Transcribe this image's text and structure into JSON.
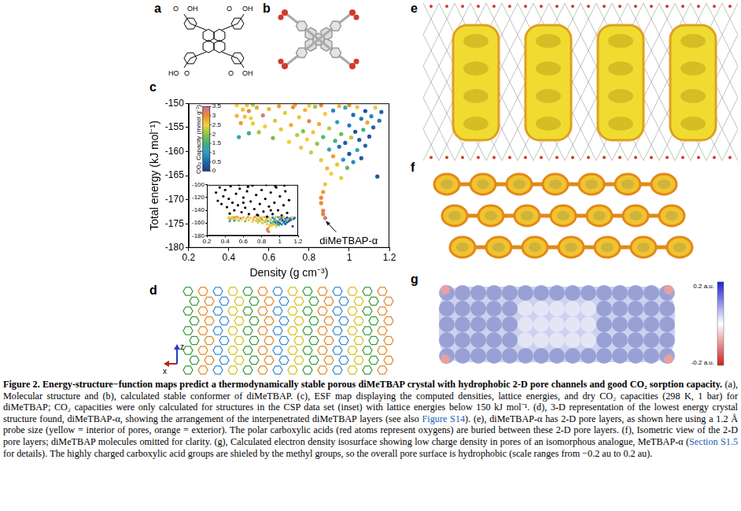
{
  "panels": [
    {
      "letter": "a",
      "atom_labels": [
        "O",
        "OH",
        "O",
        "OH",
        "HO",
        "O",
        "O",
        "OH"
      ]
    },
    {
      "letter": "b"
    },
    {
      "letter": "c"
    },
    {
      "letter": "d",
      "axis_labels": [
        "z",
        "x"
      ]
    },
    {
      "letter": "e"
    },
    {
      "letter": "f"
    },
    {
      "letter": "g",
      "scale_labels": [
        "0.2 a.u.",
        "-0.2 a.u."
      ]
    }
  ],
  "chart_data": {
    "type": "scatter",
    "x_label": "Density (g cm⁻³)",
    "y_label": "Total energy (kJ mol⁻¹)",
    "x": [
      0.47,
      0.49,
      0.44,
      0.46,
      0.44,
      0.52,
      0.5,
      0.48,
      0.5,
      0.52,
      0.54,
      0.55,
      0.57,
      0.58,
      0.6,
      0.62,
      0.63,
      0.65,
      0.66,
      0.68,
      0.7,
      0.71,
      0.72,
      0.74,
      0.75,
      0.76,
      0.77,
      0.78,
      0.79,
      0.8,
      0.81,
      0.82,
      0.83,
      0.84,
      0.85,
      0.86,
      0.87,
      0.88,
      0.89,
      0.9,
      0.9,
      0.91,
      0.92,
      0.92,
      0.93,
      0.94,
      0.94,
      0.95,
      0.96,
      0.96,
      0.97,
      0.98,
      0.98,
      0.99,
      1.0,
      1.0,
      1.01,
      1.02,
      1.02,
      1.03,
      1.04,
      1.04,
      1.05,
      1.06,
      1.06,
      1.07,
      1.08,
      1.08,
      1.09,
      1.1,
      1.11,
      1.12,
      1.13,
      1.14,
      1.15,
      1.16,
      0.73,
      0.8,
      0.86,
      0.95,
      1.0,
      0.88,
      0.87,
      0.86,
      0.86,
      0.87,
      0.87,
      0.88,
      0.45,
      0.51
    ],
    "values": [
      -151.3,
      -150.4,
      -152.6,
      -154.1,
      -150.4,
      -150.3,
      -156.2,
      -152.8,
      -151.6,
      -154.2,
      -150.9,
      -156.0,
      -152.5,
      -154.8,
      -151.2,
      -157.2,
      -153.6,
      -150.6,
      -155.4,
      -152.0,
      -158.0,
      -154.5,
      -150.8,
      -156.6,
      -152.9,
      -159.2,
      -155.8,
      -151.4,
      -157.5,
      -153.7,
      -160.2,
      -156.0,
      -150.7,
      -158.4,
      -154.3,
      -161.8,
      -157.0,
      -152.2,
      -163.5,
      -159.6,
      -155.2,
      -164.6,
      -161.0,
      -151.5,
      -157.8,
      -162.7,
      -153.9,
      -159.0,
      -165.5,
      -156.4,
      -161.7,
      -150.9,
      -158.2,
      -163.4,
      -154.6,
      -160.5,
      -157.1,
      -152.4,
      -162.2,
      -155.9,
      -159.7,
      -150.8,
      -157.6,
      -153.2,
      -161.4,
      -155.5,
      -151.6,
      -158.8,
      -154.0,
      -156.9,
      -152.7,
      -155.0,
      -150.9,
      -165.2,
      -153.6,
      -151.8,
      -150.3,
      -150.5,
      -150.4,
      -150.6,
      -150.4,
      -166.8,
      -168.4,
      -169.6,
      -170.7,
      -172.3,
      -173.0,
      -173.8,
      -157.0,
      -153.1
    ],
    "co2_capacity": [
      2.6,
      2.4,
      2.7,
      2.9,
      2.5,
      2.2,
      1.4,
      2.6,
      3.1,
      2.4,
      2.8,
      2.1,
      3.3,
      2.5,
      2.7,
      1.8,
      2.3,
      2.9,
      2.6,
      2.4,
      2.5,
      2.8,
      3.0,
      2.2,
      2.6,
      2.4,
      1.9,
      2.7,
      2.5,
      3.2,
      2.3,
      2.6,
      2.1,
      2.0,
      2.8,
      2.4,
      1.6,
      2.5,
      2.7,
      1.2,
      2.2,
      2.5,
      2.9,
      0.8,
      1.5,
      2.6,
      1.0,
      0.6,
      2.4,
      1.8,
      0.9,
      1.2,
      0.4,
      1.7,
      0.7,
      0.3,
      2.2,
      0.5,
      0.8,
      0.2,
      1.1,
      2.6,
      0.4,
      0.6,
      0.3,
      1.4,
      0.2,
      0.5,
      2.8,
      0.3,
      0.8,
      0.4,
      2.4,
      0.3,
      0.6,
      0.5,
      2.8,
      2.5,
      3.0,
      2.7,
      2.9,
      2.6,
      2.9,
      3.1,
      3.0,
      3.2,
      3.1,
      3.3,
      1.2,
      2.5
    ],
    "colorbar": {
      "label": "CO₂ Capacity (mmol g⁻¹)",
      "range": [
        0,
        3.5
      ],
      "ticks": [
        0,
        0.5,
        1,
        1.5,
        2,
        2.5,
        3,
        3.5
      ]
    },
    "annotation": "diMeTBAP-α",
    "xlim": [
      0.2,
      1.2
    ],
    "ylim": [
      -180,
      -150
    ],
    "xticks": [
      0.2,
      0.4,
      0.6,
      0.8,
      1,
      1.2
    ],
    "yticks": [
      -180,
      -175,
      -170,
      -165,
      -160,
      -155,
      -150
    ],
    "grid": false,
    "inset": {
      "type": "scatter",
      "color": "#000000",
      "x": [
        0.3,
        0.32,
        0.34,
        0.36,
        0.38,
        0.4,
        0.42,
        0.44,
        0.46,
        0.48,
        0.5,
        0.52,
        0.54,
        0.56,
        0.58,
        0.6,
        0.62,
        0.64,
        0.66,
        0.68,
        0.7,
        0.72,
        0.74,
        0.76,
        0.78,
        0.8,
        0.82,
        0.84,
        0.86,
        0.88,
        0.9,
        0.92,
        0.94,
        0.96,
        0.98,
        1.0,
        1.02,
        1.04,
        1.06,
        1.08,
        1.1,
        0.55,
        0.65,
        0.85,
        0.95,
        1.05,
        0.45,
        0.75,
        0.6,
        0.9
      ],
      "values": [
        -112,
        -125,
        -104,
        -130,
        -118,
        -108,
        -135,
        -122,
        -102,
        -128,
        -140,
        -114,
        -132,
        -106,
        -143,
        -120,
        -136,
        -110,
        -146,
        -126,
        -101,
        -138,
        -116,
        -148,
        -130,
        -108,
        -142,
        -122,
        -150,
        -134,
        -112,
        -146,
        -128,
        -104,
        -140,
        -118,
        -148,
        -132,
        -110,
        -144,
        -124,
        -100,
        -103,
        -100,
        -102,
        -101,
        -145,
        -147,
        -128,
        -140
      ],
      "xlim": [
        0.2,
        1.2
      ],
      "ylim": [
        -180,
        -100
      ],
      "xticks": [
        0.2,
        0.4,
        0.6,
        0.8,
        1,
        1.2
      ],
      "yticks": [
        -180,
        -160,
        -140,
        -120,
        -100
      ]
    }
  },
  "caption": [
    {
      "text": "Figure 2. Energy-structure−function maps predict a thermodynamically stable porous diMeTBAP crystal with hydrophobic 2-D pore channels and good CO₂ sorption capacity.",
      "style": "bold"
    },
    {
      "text": " (a), Molecular structure and (b), calculated stable conformer of diMeTBAP. (c), ESF map displaying the computed densities, lattice energies, and dry CO₂ capacities (298 K, 1 bar) for diMeTBAP; CO₂ capacities were only calculated for structures in the CSP data set (inset) with lattice energies below 150 kJ mol⁻¹. (d), 3-D representation of the lowest energy crystal structure found, diMeTBAP-α, showing the arrangement of the interpenetrated diMeTBAP layers (see also ",
      "style": "plain"
    },
    {
      "text": "Figure S14",
      "style": "link"
    },
    {
      "text": "). (e), diMeTBAP-α has 2-D pore layers, as shown here using a 1.2 Å probe size (yellow = interior of pores, orange = exterior). The polar carboxylic acids (red atoms represent oxygens) are buried between these 2-D pore layers. (f), Isometric view of the 2-D pore layers; diMeTBAP molecules omitted for clarity. (g), Calculated electron density isosurface showing low charge density in pores of an isomorphous analogue, MeTBAP-α (",
      "style": "plain"
    },
    {
      "text": "Section S1.5",
      "style": "link"
    },
    {
      "text": " for details). The highly charged carboxylic acid groups are shieled by the methyl groups, so the overall pore surface is hydrophobic (scale ranges from −0.2 au to 0.2 au).",
      "style": "plain"
    }
  ]
}
